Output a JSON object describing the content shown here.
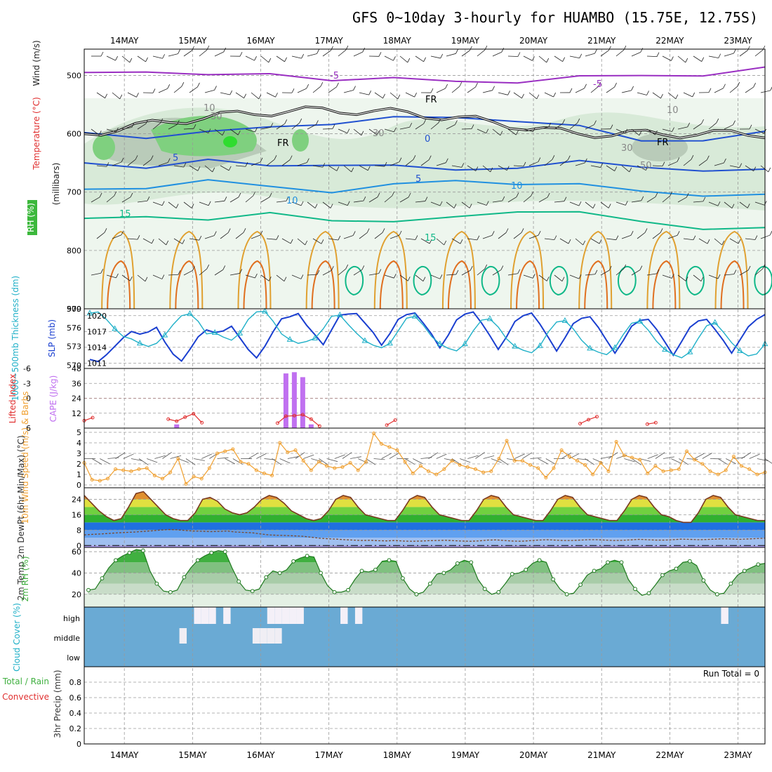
{
  "title": "GFS 0~10day 3-hourly for HUAMBO (15.75E, 12.75S)",
  "dates": [
    "14MAY",
    "15MAY",
    "16MAY",
    "17MAY",
    "18MAY",
    "19MAY",
    "20MAY",
    "21MAY",
    "22MAY",
    "23MAY"
  ],
  "colors": {
    "temp_purple": "#9a2fc2",
    "freezing": "#000000",
    "temp_blue": "#2050d0",
    "temp_lightblue": "#2090e0",
    "temp_teal": "#10b888",
    "temp_orange": "#e0a030",
    "temp_darkorange": "#e07020",
    "rh_green": "#60c060",
    "slp_blue": "#1a3fd0",
    "thick_cyan": "#20b0c8",
    "cape_purple": "#c070f0",
    "li_red": "#e03030",
    "wind_orange": "#f0a030",
    "rh2m_green": "#40b040",
    "cloud_blue": "#6aaad4"
  },
  "chart_data": [
    {
      "panel": "upper-air",
      "type": "heatmap",
      "ylabel_parts": [
        "Wind (m/s)",
        "Temperature (°C)",
        "RH (%)",
        "(millibars)"
      ],
      "yticks": [
        500,
        600,
        700,
        800,
        900
      ],
      "ylim": [
        900,
        455
      ],
      "contour_labels": [
        "-5",
        "-5",
        "FR",
        "FR",
        "FR",
        "0",
        "5",
        "5",
        "10",
        "10",
        "15",
        "15",
        "10",
        "10",
        "30",
        "30",
        "30",
        "50"
      ],
      "isotherms": [
        {
          "label": "-5",
          "levels": [
            495,
            490,
            503,
            497,
            505,
            508,
            510,
            509,
            505,
            500,
            497,
            490
          ]
        },
        {
          "label": "0",
          "levels": [
            598,
            604,
            600,
            588,
            580,
            575,
            572,
            575,
            590,
            612,
            608,
            600
          ]
        },
        {
          "label": "5",
          "levels": [
            650,
            655,
            648,
            655,
            650,
            658,
            662,
            655,
            650,
            657,
            660,
            665
          ]
        },
        {
          "label": "10",
          "levels": [
            695,
            690,
            683,
            690,
            697,
            690,
            680,
            683,
            690,
            698,
            703,
            708
          ]
        },
        {
          "label": "15",
          "levels": [
            745,
            738,
            752,
            735,
            745,
            755,
            742,
            730,
            738,
            750,
            760,
            765
          ]
        }
      ]
    },
    {
      "panel": "slp-thickness",
      "type": "line",
      "ylabel_left": "1000~500mb Thickness (dm)",
      "ylabel_right": "SLP (mb)",
      "yticks_left": [
        570,
        573,
        576,
        579
      ],
      "yticks_right": [
        1011,
        1014,
        1017,
        1020
      ],
      "ylim_left": [
        569.5,
        579
      ],
      "ylim_right": [
        1010,
        1021.3
      ],
      "series": [
        {
          "name": "SLP (mb)",
          "values": [
            1011.7,
            1011.3,
            1012.6,
            1014.2,
            1015.8,
            1017.0,
            1016.5,
            1016.9,
            1017.8,
            1015.0,
            1012.7,
            1011.4,
            1013.6,
            1016.0,
            1017.3,
            1016.8,
            1017.1,
            1018.0,
            1015.8,
            1013.6,
            1012.0,
            1014.2,
            1017.0,
            1019.4,
            1019.8,
            1020.4,
            1018.2,
            1016.4,
            1014.5,
            1017.3,
            1020.1,
            1020.3,
            1020.4,
            1018.6,
            1016.8,
            1014.4,
            1016.6,
            1019.3,
            1020.2,
            1020.5,
            1018.6,
            1016.5,
            1013.9,
            1016.3,
            1019.2,
            1020.3,
            1020.7,
            1018.6,
            1016.2,
            1013.6,
            1016.0,
            1018.9,
            1020.0,
            1020.5,
            1018.4,
            1015.9,
            1013.3,
            1015.8,
            1018.5,
            1019.5,
            1019.8,
            1017.8,
            1015.3,
            1012.9,
            1015.3,
            1018.0,
            1019.1,
            1019.3,
            1017.4,
            1015.0,
            1012.5,
            1015.1,
            1017.8,
            1019.0,
            1019.3,
            1017.4,
            1015.3,
            1012.9,
            1015.4,
            1017.9,
            1019.3,
            1020.2
          ]
        },
        {
          "name": "1000~500mb Thickness (dm)",
          "values": [
            578.3,
            578.5,
            577.3,
            575.8,
            574.6,
            574.2,
            573.5,
            573.0,
            573.5,
            574.8,
            576.5,
            577.9,
            578.2,
            577.0,
            575.0,
            575.2,
            574.5,
            574.0,
            575.1,
            577.3,
            578.5,
            578.6,
            577.0,
            575.0,
            574.1,
            573.5,
            573.8,
            574.3,
            575.8,
            577.8,
            578.0,
            576.5,
            575.1,
            573.9,
            573.2,
            572.8,
            573.5,
            575.5,
            577.5,
            577.8,
            576.4,
            574.6,
            573.4,
            572.7,
            572.3,
            573.4,
            575.5,
            577.2,
            577.4,
            576.1,
            574.2,
            573.0,
            572.4,
            572.0,
            573.1,
            575.3,
            576.9,
            577.1,
            575.8,
            574.0,
            572.7,
            572.1,
            571.7,
            572.8,
            574.9,
            576.7,
            577.0,
            575.6,
            573.8,
            572.5,
            571.7,
            571.2,
            572.1,
            574.3,
            576.3,
            576.8,
            575.3,
            573.6,
            572.3,
            571.5,
            571.8,
            573.4
          ]
        }
      ]
    },
    {
      "panel": "cape-li",
      "type": "bar",
      "ylabel_left": "Lifted Index",
      "ylabel_right": "CAPE (J/kg)",
      "yticks_left": [
        6,
        0,
        -3,
        -6
      ],
      "yticks_right": [
        12,
        24,
        36,
        48
      ],
      "ylim_right": [
        0,
        48
      ],
      "cape_series": {
        "name": "CAPE (J/kg)",
        "values": [
          0,
          0,
          0,
          0,
          0,
          0,
          0,
          0,
          0,
          0,
          0,
          3,
          0,
          0,
          0,
          0,
          0,
          0,
          0,
          0,
          0,
          0,
          0,
          0,
          44,
          45,
          41,
          3,
          0,
          0,
          0,
          0,
          0,
          0,
          0,
          0,
          0,
          0,
          0,
          0,
          0,
          0,
          0,
          0,
          0,
          0,
          0,
          0,
          0,
          0,
          0,
          0,
          0,
          0,
          0,
          0,
          0,
          0,
          0,
          0,
          0,
          0,
          0,
          0,
          0,
          0,
          0,
          0,
          0,
          0,
          0,
          0,
          0,
          0,
          0,
          0,
          0,
          0,
          0,
          0,
          0,
          0
        ]
      },
      "li_segments": [
        {
          "start": 0,
          "values": [
            4.5,
            3.9
          ]
        },
        {
          "start": 10,
          "values": [
            4.2,
            4.6,
            3.8,
            3.1,
            4.9
          ]
        },
        {
          "start": 23,
          "values": [
            5.0,
            3.6,
            3.5,
            3.3,
            4.2,
            5.6
          ]
        },
        {
          "start": 36,
          "values": [
            5.4,
            4.4
          ]
        },
        {
          "start": 59,
          "values": [
            5.1,
            4.3,
            3.7
          ]
        },
        {
          "start": 67,
          "values": [
            5.2,
            4.9
          ]
        }
      ]
    },
    {
      "panel": "10m-wind",
      "type": "line",
      "ylabel": "10m Wind Speed (m/s) & Barbs",
      "yticks": [
        0,
        1,
        2,
        3,
        4,
        5
      ],
      "ylim": [
        0,
        5
      ],
      "series": [
        {
          "name": "10m Wind Speed",
          "values": [
            2.1,
            0.5,
            0.4,
            0.6,
            1.5,
            1.4,
            1.3,
            1.5,
            1.6,
            0.9,
            0.6,
            1.2,
            2.5,
            0.1,
            0.8,
            0.6,
            1.6,
            3.0,
            3.2,
            3.4,
            2.2,
            2.0,
            1.4,
            1.1,
            0.9,
            4.0,
            3.1,
            3.3,
            2.3,
            1.4,
            2.2,
            1.8,
            1.6,
            1.7,
            2.1,
            1.4,
            2.2,
            4.9,
            3.9,
            3.6,
            3.3,
            2.2,
            1.1,
            1.8,
            1.3,
            1.0,
            1.5,
            2.3,
            1.9,
            1.7,
            1.5,
            1.2,
            1.3,
            2.5,
            4.2,
            2.3,
            2.3,
            1.9,
            1.6,
            0.7,
            1.6,
            3.3,
            2.7,
            2.3,
            1.9,
            1.0,
            2.1,
            1.3,
            4.1,
            2.8,
            2.6,
            2.4,
            1.1,
            1.8,
            1.3,
            1.4,
            1.5,
            3.2,
            2.4,
            2.0,
            1.3,
            1.0,
            1.4,
            2.7,
            1.8,
            1.5,
            1.0,
            1.2
          ]
        }
      ]
    },
    {
      "panel": "2m-temp",
      "type": "area",
      "ylabel": "2m Temp 2m DewPt (6hr Min/Max) (°C)",
      "yticks": [
        0,
        8,
        16,
        24
      ],
      "ylim": [
        -1,
        30
      ],
      "series": [
        {
          "name": "2m Temp",
          "values": [
            26,
            22,
            18,
            15,
            13,
            14,
            20,
            27,
            28,
            24,
            20,
            16,
            14,
            13,
            13,
            17,
            24,
            25,
            23,
            19,
            17,
            16,
            17,
            20,
            24,
            26,
            25,
            22,
            18,
            16,
            14,
            13,
            14,
            18,
            24,
            26,
            25,
            20,
            16,
            15,
            14,
            13,
            13,
            18,
            24,
            26,
            25,
            20,
            16,
            15,
            14,
            13,
            13,
            18,
            24,
            26,
            25,
            20,
            16,
            15,
            14,
            13,
            13,
            18,
            24,
            26,
            25,
            20,
            16,
            15,
            14,
            13,
            13,
            18,
            24,
            26,
            25,
            20,
            16,
            15,
            13,
            12,
            12,
            17,
            24,
            26,
            25,
            20,
            16,
            15,
            14,
            13,
            13
          ]
        },
        {
          "name": "2m DewPt",
          "values": [
            5.5,
            5.8,
            6.0,
            6.3,
            6.6,
            6.8,
            7.0,
            7.3,
            7.6,
            8.0,
            8.3,
            8.2,
            7.8,
            7.5,
            7.4,
            7.2,
            7.3,
            7.5,
            7.0,
            6.8,
            6.6,
            6.0,
            5.5,
            5.3,
            5.2,
            5.0,
            4.8,
            4.3,
            3.8,
            3.5,
            3.3,
            3.0,
            2.8,
            2.6,
            2.7,
            2.5,
            2.4,
            2.6,
            2.3,
            2.2,
            2.3,
            2.5,
            2.6,
            2.7,
            2.5,
            2.3,
            2.2,
            2.4,
            2.8,
            2.9,
            2.6,
            2.3,
            2.2,
            2.5,
            2.8,
            3.0,
            2.8,
            2.6,
            2.6,
            2.8,
            3.0,
            3.0,
            2.8,
            2.6,
            2.7,
            2.9,
            3.2,
            3.0,
            2.8,
            2.8,
            3.0,
            3.3,
            3.2,
            3.0,
            3.1,
            3.3,
            3.5,
            3.4,
            3.2,
            3.4,
            3.6,
            3.8
          ]
        }
      ]
    },
    {
      "panel": "2m-rh",
      "type": "area",
      "ylabel": "2m RH (%)",
      "yticks": [
        20,
        40,
        60
      ],
      "ylim": [
        8,
        64
      ],
      "series": [
        {
          "name": "2m RH",
          "values": [
            24,
            25,
            35,
            45,
            52,
            56,
            59,
            62,
            61,
            42,
            30,
            23,
            22,
            24,
            36,
            45,
            52,
            56,
            59,
            61,
            60,
            45,
            32,
            24,
            23,
            25,
            36,
            42,
            40,
            43,
            51,
            54,
            56,
            55,
            40,
            28,
            22,
            22,
            24,
            34,
            42,
            41,
            43,
            51,
            52,
            51,
            35,
            25,
            20,
            22,
            30,
            39,
            40,
            43,
            49,
            52,
            50,
            34,
            25,
            20,
            22,
            30,
            39,
            40,
            43,
            49,
            52,
            50,
            34,
            25,
            20,
            21,
            29,
            38,
            42,
            44,
            50,
            52,
            50,
            34,
            25,
            19,
            21,
            29,
            38,
            42,
            44,
            50,
            51,
            47,
            33,
            24,
            20,
            21,
            30,
            38,
            42,
            45,
            48,
            49
          ]
        }
      ]
    },
    {
      "panel": "cloud-cover",
      "type": "heatmap",
      "ylabel": "Cloud Cover (%)",
      "rows": [
        "high",
        "middle",
        "low"
      ],
      "high": [
        0,
        0,
        0,
        0,
        0,
        0,
        0,
        0,
        0,
        0,
        0,
        0,
        0,
        0,
        0,
        1,
        1,
        1,
        0,
        1,
        0,
        0,
        0,
        0,
        0,
        1,
        1,
        1,
        1,
        1,
        0,
        0,
        0,
        0,
        0,
        1,
        0,
        1,
        0,
        0,
        0,
        0,
        0,
        0,
        0,
        0,
        0,
        0,
        0,
        0,
        0,
        0,
        0,
        0,
        0,
        0,
        0,
        0,
        0,
        0,
        0,
        0,
        0,
        0,
        0,
        0,
        0,
        0,
        0,
        0,
        0,
        0,
        0,
        0,
        0,
        0,
        0,
        0,
        0,
        0,
        0,
        0,
        0,
        0,
        0,
        0,
        0,
        1,
        0,
        0,
        0,
        0,
        0
      ],
      "middle": [
        0,
        0,
        0,
        0,
        0,
        0,
        0,
        0,
        0,
        0,
        0,
        0,
        0,
        1,
        0,
        0,
        0,
        0,
        0,
        0,
        0,
        0,
        0,
        1,
        1,
        1,
        1,
        0,
        0,
        0,
        0,
        0,
        0,
        0,
        0,
        0,
        0,
        0,
        0,
        0,
        0,
        0,
        0,
        0,
        0,
        0,
        0,
        0,
        0,
        0,
        0,
        0,
        0,
        0,
        0,
        0,
        0,
        0,
        0,
        0,
        0,
        0,
        0,
        0,
        0,
        0,
        0,
        0,
        0,
        0,
        0,
        0,
        0,
        0,
        0,
        0,
        0,
        0,
        0,
        0,
        0,
        0,
        0,
        0,
        0,
        0,
        0,
        0,
        0,
        0,
        0,
        0,
        0,
        0
      ]
    },
    {
      "panel": "precip",
      "type": "bar",
      "ylabel": "3hr Precip (mm)",
      "legend": [
        "Total / Rain",
        "Convective"
      ],
      "run_total": "Run Total = 0",
      "yticks": [
        0,
        0.2,
        0.4,
        0.6,
        0.8
      ],
      "ylim": [
        0,
        1.0
      ],
      "values": [
        0,
        0,
        0,
        0,
        0,
        0,
        0,
        0,
        0,
        0,
        0,
        0,
        0,
        0,
        0,
        0,
        0,
        0,
        0,
        0,
        0,
        0,
        0,
        0,
        0,
        0,
        0,
        0,
        0,
        0,
        0,
        0,
        0,
        0,
        0,
        0,
        0,
        0,
        0,
        0,
        0,
        0,
        0,
        0,
        0,
        0,
        0,
        0,
        0,
        0,
        0,
        0,
        0,
        0,
        0,
        0,
        0,
        0,
        0,
        0,
        0,
        0,
        0,
        0,
        0,
        0,
        0,
        0,
        0,
        0,
        0,
        0,
        0,
        0,
        0,
        0,
        0,
        0,
        0,
        0,
        0,
        0
      ]
    }
  ]
}
